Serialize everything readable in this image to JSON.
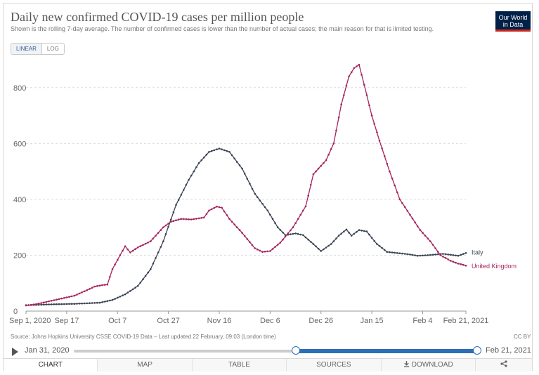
{
  "header": {
    "title": "Daily new confirmed COVID-19 cases per million people",
    "subtitle": "Shown is the rolling 7-day average. The number of confirmed cases is lower than the number of actual cases; the main reason for that is limited testing.",
    "logo_line1": "Our World",
    "logo_line2": "in Data"
  },
  "scale_toggle": {
    "linear": "LINEAR",
    "log": "LOG",
    "selected": "LINEAR"
  },
  "chart_data": {
    "type": "line",
    "x_unit": "date",
    "xlim": [
      "2020-09-01",
      "2021-02-21"
    ],
    "ylim": [
      0,
      900
    ],
    "y_ticks": [
      0,
      200,
      400,
      600,
      800
    ],
    "x_tick_labels": [
      "Sep 1, 2020",
      "Sep 17",
      "Oct 7",
      "Oct 27",
      "Nov 16",
      "Dec 6",
      "Dec 26",
      "Jan 15",
      "Feb 4",
      "Feb 21, 2021"
    ],
    "x_tick_dates": [
      "2020-09-01",
      "2020-09-17",
      "2020-10-07",
      "2020-10-27",
      "2020-11-16",
      "2020-12-06",
      "2020-12-26",
      "2021-01-15",
      "2021-02-04",
      "2021-02-21"
    ],
    "grid": "horizontal",
    "series": [
      {
        "name": "Italy",
        "color": "#3a4454",
        "points": [
          [
            "2020-09-01",
            21
          ],
          [
            "2020-09-10",
            24
          ],
          [
            "2020-09-20",
            26
          ],
          [
            "2020-09-30",
            30
          ],
          [
            "2020-10-05",
            40
          ],
          [
            "2020-10-10",
            60
          ],
          [
            "2020-10-15",
            90
          ],
          [
            "2020-10-20",
            150
          ],
          [
            "2020-10-25",
            250
          ],
          [
            "2020-10-30",
            380
          ],
          [
            "2020-11-04",
            470
          ],
          [
            "2020-11-08",
            530
          ],
          [
            "2020-11-12",
            570
          ],
          [
            "2020-11-16",
            582
          ],
          [
            "2020-11-20",
            570
          ],
          [
            "2020-11-25",
            510
          ],
          [
            "2020-11-30",
            420
          ],
          [
            "2020-12-05",
            360
          ],
          [
            "2020-12-09",
            300
          ],
          [
            "2020-12-12",
            272
          ],
          [
            "2020-12-16",
            278
          ],
          [
            "2020-12-19",
            272
          ],
          [
            "2020-12-23",
            240
          ],
          [
            "2020-12-26",
            215
          ],
          [
            "2020-12-30",
            240
          ],
          [
            "2021-01-02",
            270
          ],
          [
            "2021-01-05",
            292
          ],
          [
            "2021-01-07",
            270
          ],
          [
            "2021-01-10",
            290
          ],
          [
            "2021-01-13",
            285
          ],
          [
            "2021-01-17",
            240
          ],
          [
            "2021-01-21",
            212
          ],
          [
            "2021-01-25",
            208
          ],
          [
            "2021-01-29",
            204
          ],
          [
            "2021-02-02",
            198
          ],
          [
            "2021-02-06",
            200
          ],
          [
            "2021-02-12",
            205
          ],
          [
            "2021-02-18",
            198
          ],
          [
            "2021-02-21",
            208
          ]
        ]
      },
      {
        "name": "United Kingdom",
        "color": "#a5245e",
        "points": [
          [
            "2020-09-01",
            20
          ],
          [
            "2020-09-05",
            25
          ],
          [
            "2020-09-10",
            35
          ],
          [
            "2020-09-15",
            45
          ],
          [
            "2020-09-20",
            55
          ],
          [
            "2020-09-25",
            75
          ],
          [
            "2020-09-28",
            88
          ],
          [
            "2020-10-01",
            93
          ],
          [
            "2020-10-03",
            95
          ],
          [
            "2020-10-05",
            150
          ],
          [
            "2020-10-08",
            200
          ],
          [
            "2020-10-10",
            232
          ],
          [
            "2020-10-12",
            210
          ],
          [
            "2020-10-15",
            228
          ],
          [
            "2020-10-20",
            250
          ],
          [
            "2020-10-25",
            300
          ],
          [
            "2020-10-28",
            320
          ],
          [
            "2020-11-01",
            330
          ],
          [
            "2020-11-05",
            328
          ],
          [
            "2020-11-10",
            335
          ],
          [
            "2020-11-12",
            360
          ],
          [
            "2020-11-15",
            374
          ],
          [
            "2020-11-17",
            370
          ],
          [
            "2020-11-20",
            330
          ],
          [
            "2020-11-25",
            280
          ],
          [
            "2020-11-30",
            225
          ],
          [
            "2020-12-03",
            212
          ],
          [
            "2020-12-06",
            215
          ],
          [
            "2020-12-10",
            245
          ],
          [
            "2020-12-15",
            300
          ],
          [
            "2020-12-20",
            375
          ],
          [
            "2020-12-23",
            490
          ],
          [
            "2020-12-26",
            520
          ],
          [
            "2020-12-28",
            540
          ],
          [
            "2020-12-31",
            600
          ],
          [
            "2021-01-03",
            740
          ],
          [
            "2021-01-06",
            840
          ],
          [
            "2021-01-08",
            870
          ],
          [
            "2021-01-10",
            882
          ],
          [
            "2021-01-12",
            810
          ],
          [
            "2021-01-15",
            700
          ],
          [
            "2021-01-18",
            610
          ],
          [
            "2021-01-22",
            500
          ],
          [
            "2021-01-26",
            400
          ],
          [
            "2021-01-30",
            345
          ],
          [
            "2021-02-03",
            290
          ],
          [
            "2021-02-07",
            250
          ],
          [
            "2021-02-11",
            200
          ],
          [
            "2021-02-15",
            180
          ],
          [
            "2021-02-18",
            170
          ],
          [
            "2021-02-21",
            163
          ]
        ]
      }
    ]
  },
  "footer": {
    "source": "Source: Johns Hopkins University CSSE COVID-19 Data – Last updated 22 February, 09:03 (London time)",
    "license": "CC BY"
  },
  "timeline": {
    "start_label": "Jan 31, 2020",
    "end_label": "Feb 21, 2021",
    "range_start": "2020-09-01",
    "range_end": "2021-02-21"
  },
  "tabs": [
    {
      "label": "CHART",
      "icon": ""
    },
    {
      "label": "MAP",
      "icon": ""
    },
    {
      "label": "TABLE",
      "icon": ""
    },
    {
      "label": "SOURCES",
      "icon": ""
    },
    {
      "label": "DOWNLOAD",
      "icon": "download-icon"
    },
    {
      "label": "",
      "icon": "share-icon"
    }
  ],
  "active_tab": "CHART"
}
